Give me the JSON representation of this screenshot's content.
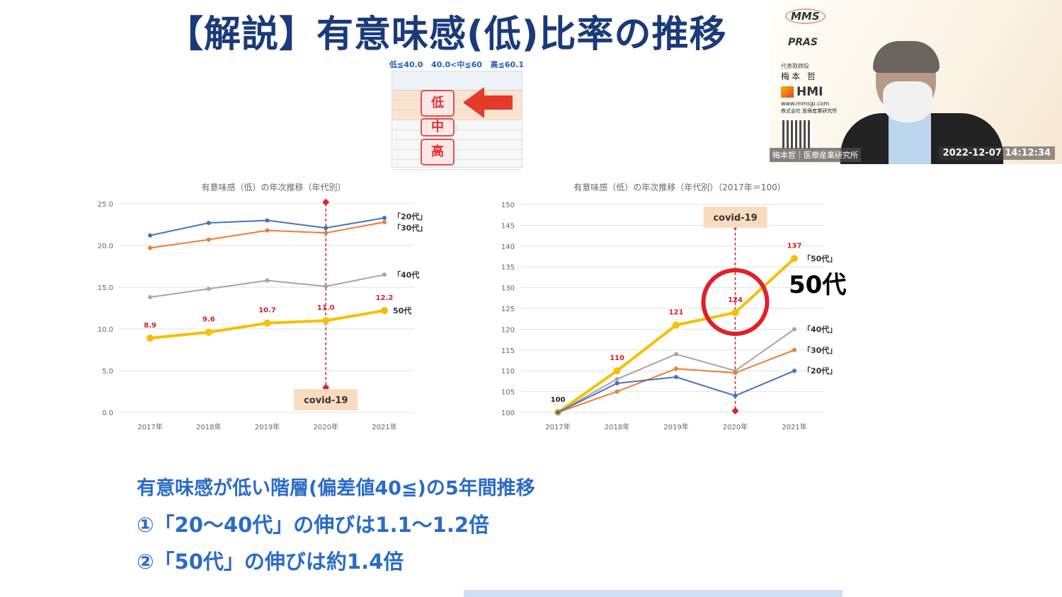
{
  "slide": {
    "title": "【解説】有意味感(低)比率の推移",
    "scale_labels": [
      "低≦40.0",
      "40.0<中≦60",
      "高≦60.1"
    ],
    "levels": [
      "低",
      "中",
      "高"
    ],
    "bullets": [
      "有意味感が低い階層(偏差値40≦)の5年間推移",
      "①「20～40代」の伸びは1.1～1.2倍",
      "②「50代」の伸びは約1.4倍"
    ],
    "annotation": "50代"
  },
  "video": {
    "logos": [
      "MMS",
      "PRAS",
      "HMI"
    ],
    "role": "代表取締役",
    "presenter": "梅本 哲",
    "url": "www.mmsjp.com",
    "company": "株式会社 医療産業研究所",
    "name_tag": "梅本哲｜医療産業研究所",
    "timestamp": "2022-12-07  14:12:34"
  },
  "colors": {
    "blue": "#4472c4",
    "orange": "#ed7d31",
    "gray": "#a5a5a5",
    "yellow": "#f5c000",
    "red": "#e0202a",
    "title": "#1a3a7a",
    "bullet": "#2a6bc8"
  },
  "chart_data": [
    {
      "type": "line",
      "title": "有意味感（低）の年次推移（年代別）",
      "categories": [
        "2017年",
        "2018年",
        "2019年",
        "2020年",
        "2021年"
      ],
      "ylim": [
        0,
        25
      ],
      "yticks": [
        "0.0",
        "5.0",
        "10.0",
        "15.0",
        "20.0",
        "25.0"
      ],
      "grid": true,
      "series": [
        {
          "name": "「20代」",
          "color": "#4472c4",
          "values": [
            21.2,
            22.7,
            23.0,
            22.1,
            23.3
          ]
        },
        {
          "name": "「30代」",
          "color": "#ed7d31",
          "values": [
            19.7,
            20.7,
            21.8,
            21.5,
            22.8
          ]
        },
        {
          "name": "「40代",
          "color": "#a5a5a5",
          "values": [
            13.8,
            14.8,
            15.8,
            15.1,
            16.5
          ]
        },
        {
          "name": "50代",
          "color": "#f5c000",
          "values": [
            8.9,
            9.6,
            10.7,
            11.0,
            12.2
          ],
          "labels": [
            "8.9",
            "9.6",
            "10.7",
            "11.0",
            "12.2"
          ]
        }
      ],
      "annotation": {
        "label": "covid-19",
        "x": "2020年"
      }
    },
    {
      "type": "line",
      "title": "有意味感（低）の年次推移（年代別）（2017年＝100）",
      "categories": [
        "2017年",
        "2018年",
        "2019年",
        "2020年",
        "2021年"
      ],
      "ylim": [
        100,
        150
      ],
      "yticks": [
        "100",
        "105",
        "110",
        "115",
        "120",
        "125",
        "130",
        "135",
        "140",
        "145",
        "150"
      ],
      "grid": true,
      "series": [
        {
          "name": "「50代」",
          "color": "#f5c000",
          "values": [
            100,
            110,
            121,
            124,
            137
          ],
          "labels": [
            "100",
            "110",
            "121",
            "124",
            "137"
          ]
        },
        {
          "name": "「40代」",
          "color": "#a5a5a5",
          "values": [
            100,
            108,
            114,
            110,
            120
          ]
        },
        {
          "name": "「30代」",
          "color": "#ed7d31",
          "values": [
            100,
            105,
            110.5,
            109.5,
            115
          ]
        },
        {
          "name": "「20代」",
          "color": "#4472c4",
          "values": [
            100,
            107,
            108.5,
            104,
            110
          ]
        }
      ],
      "annotation": {
        "label": "covid-19",
        "x": "2020年"
      }
    }
  ]
}
